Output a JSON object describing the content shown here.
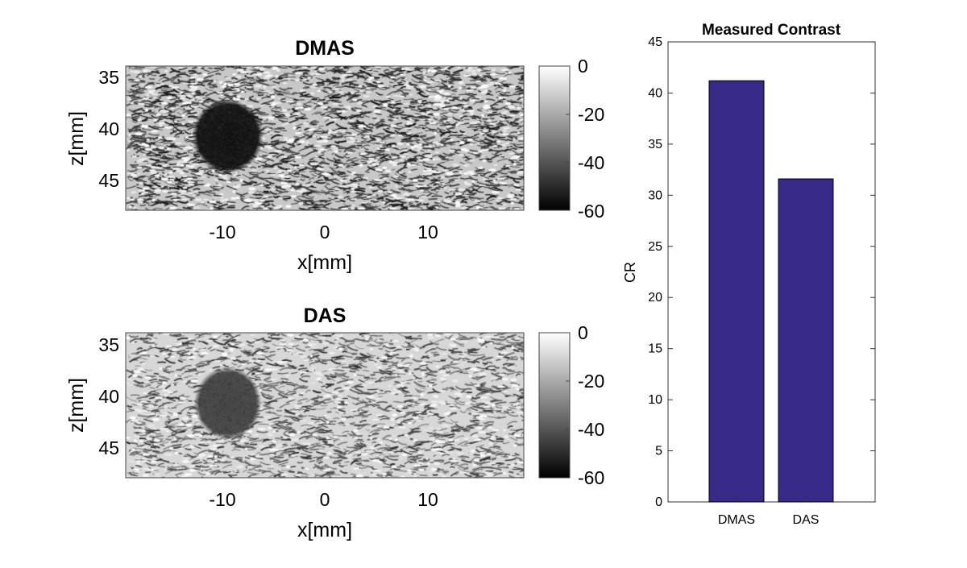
{
  "figure": {
    "panels": [
      {
        "title": "DMAS",
        "xlabel": "x[mm]",
        "ylabel": "z[mm]",
        "x_ticks": [
          "-10",
          "0",
          "10"
        ],
        "y_ticks": [
          "35",
          "40",
          "45"
        ],
        "colorbar_ticks": [
          "0",
          "-20",
          "-40",
          "-60"
        ],
        "colormap": "gray"
      },
      {
        "title": "DAS",
        "xlabel": "x[mm]",
        "ylabel": "z[mm]",
        "x_ticks": [
          "-10",
          "0",
          "10"
        ],
        "y_ticks": [
          "35",
          "40",
          "45"
        ],
        "colorbar_ticks": [
          "0",
          "-20",
          "-40",
          "-60"
        ],
        "colormap": "gray"
      }
    ]
  },
  "chart_data": [
    {
      "type": "heatmap",
      "title": "DMAS",
      "xlabel": "x[mm]",
      "ylabel": "z[mm]",
      "xlim": [
        -19.5,
        19.5
      ],
      "ylim": [
        34,
        48
      ],
      "x_ticks": [
        -10,
        0,
        10
      ],
      "y_ticks": [
        35,
        40,
        45
      ],
      "color_range_db": [
        -60,
        0
      ],
      "colorbar_ticks": [
        0,
        -20,
        -40,
        -60
      ],
      "colormap": "gray",
      "lesion": {
        "x": -9.5,
        "z": 40.8,
        "radius_x": 3.5,
        "radius_z": 3.6
      }
    },
    {
      "type": "heatmap",
      "title": "DAS",
      "xlabel": "x[mm]",
      "ylabel": "z[mm]",
      "xlim": [
        -19.5,
        19.5
      ],
      "ylim": [
        34,
        48
      ],
      "x_ticks": [
        -10,
        0,
        10
      ],
      "y_ticks": [
        35,
        40,
        45
      ],
      "color_range_db": [
        -60,
        0
      ],
      "colorbar_ticks": [
        0,
        -20,
        -40,
        -60
      ],
      "colormap": "gray",
      "lesion": {
        "x": -9.5,
        "z": 40.8,
        "radius_x": 3.3,
        "radius_z": 3.5
      }
    },
    {
      "type": "bar",
      "title": "Measured Contrast",
      "categories": [
        "DMAS",
        "DAS"
      ],
      "values": [
        41.2,
        31.6
      ],
      "xlabel": "",
      "ylabel": "CR",
      "ylim": [
        0,
        45
      ],
      "y_ticks": [
        0,
        5,
        10,
        15,
        20,
        25,
        30,
        35,
        40,
        45
      ],
      "bar_color": "#352a87",
      "grid": false
    }
  ]
}
